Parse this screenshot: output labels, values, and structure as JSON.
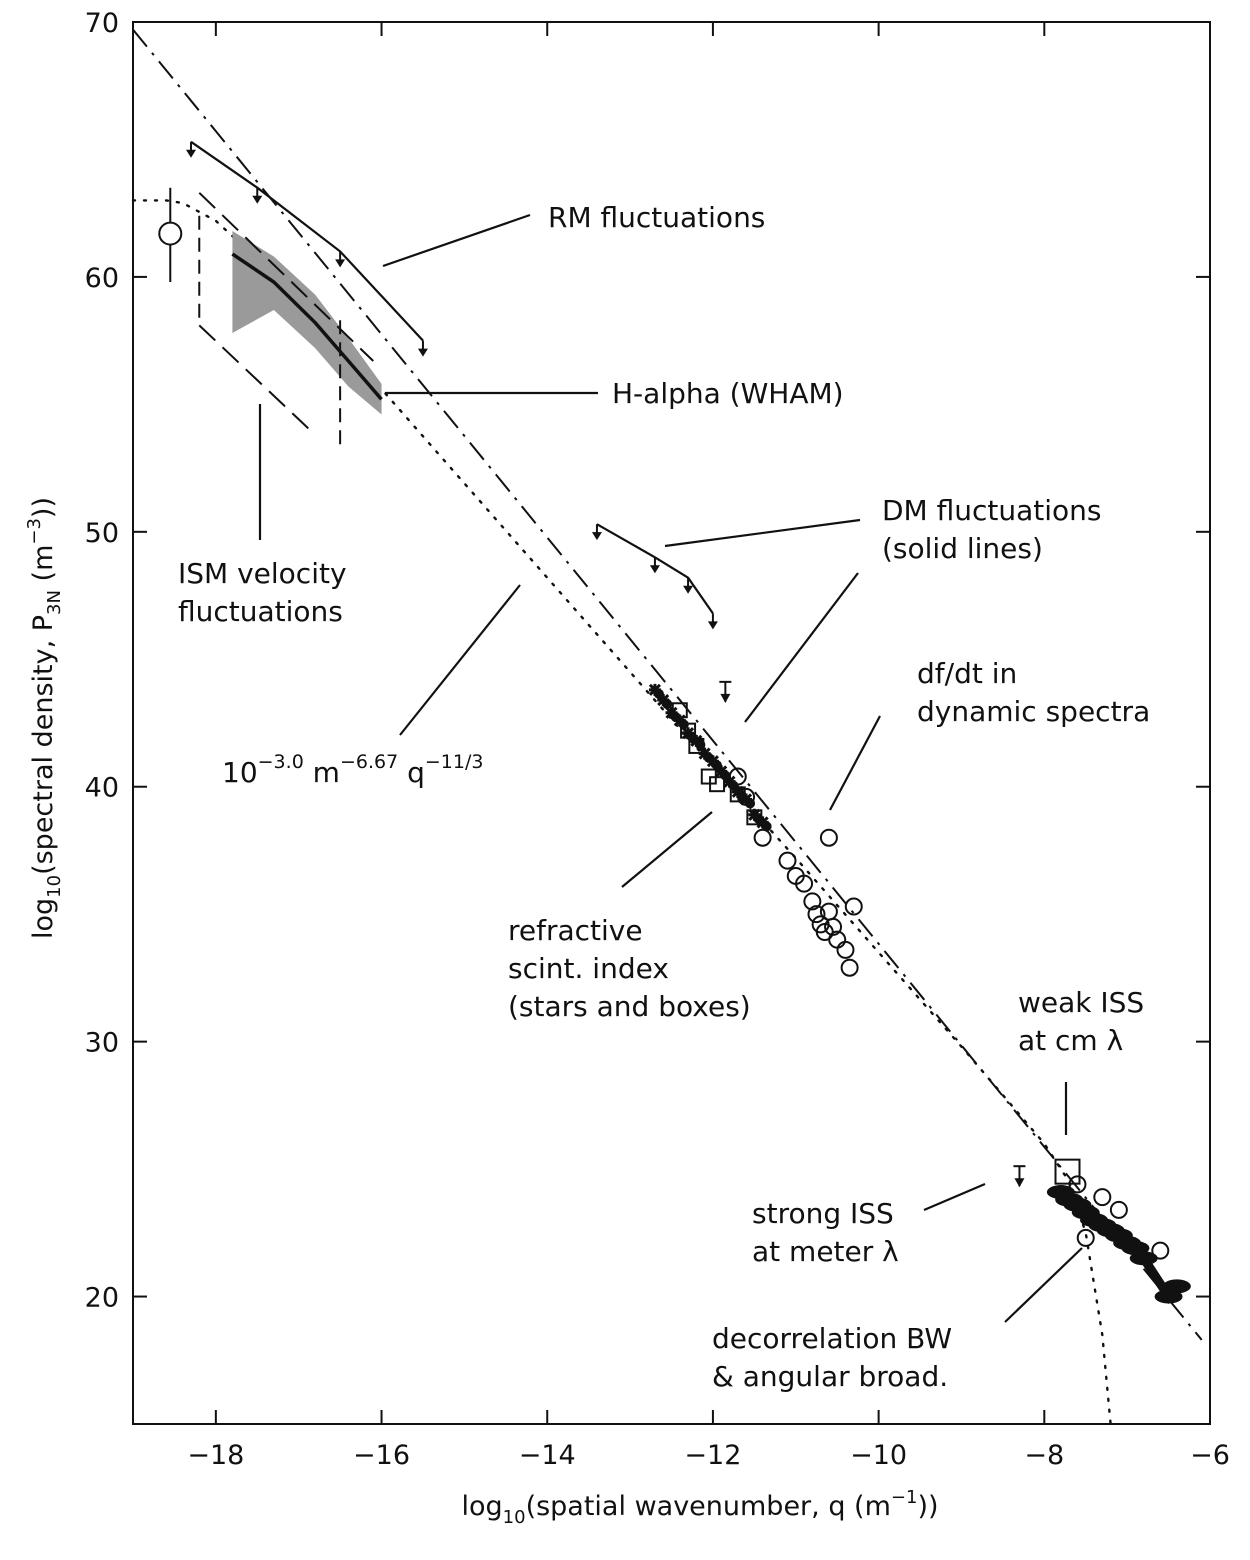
{
  "chart_data": {
    "type": "scatter",
    "xlabel": "log10(spatial wavenumber, q (m^-1))",
    "ylabel": "log10(spectral density, P3N (m^-3))",
    "xlabel_parts": {
      "main": "log",
      "sub": "10",
      "rest": "(spatial wavenumber, q (m",
      "sup": "−1",
      "end": "))"
    },
    "ylabel_parts": {
      "main": "log",
      "sub": "10",
      "rest": "(spectral density, P",
      "sub2": "3N",
      "mid": " (m",
      "sup": "−3",
      "end": "))"
    },
    "xlim": [
      -19,
      -6
    ],
    "ylim": [
      15,
      70
    ],
    "xticks": [
      -18,
      -16,
      -14,
      -12,
      -10,
      -8,
      -6
    ],
    "xtick_labels": [
      "−18",
      "−16",
      "−14",
      "−12",
      "−10",
      "−8",
      "−6"
    ],
    "yticks": [
      20,
      30,
      40,
      50,
      60,
      70
    ],
    "ytick_labels": [
      "20",
      "30",
      "40",
      "50",
      "60",
      "70"
    ],
    "fit_label": {
      "base": "10",
      "e1": "−3.0",
      "m": " m",
      "e2": "−6.67",
      "q": " q",
      "e3": "−11/3"
    },
    "annotations": [
      {
        "lines": [
          "RM fluctuations"
        ]
      },
      {
        "lines": [
          "H-alpha (WHAM)"
        ]
      },
      {
        "lines": [
          "ISM velocity",
          "fluctuations"
        ]
      },
      {
        "lines": [
          "DM fluctuations",
          "(solid lines)"
        ]
      },
      {
        "lines": [
          "df/dt in",
          "dynamic spectra"
        ]
      },
      {
        "lines": [
          "refractive",
          "scint. index",
          "(stars and boxes)"
        ]
      },
      {
        "lines": [
          "weak ISS",
          "at cm λ"
        ]
      },
      {
        "lines": [
          "strong ISS",
          "at meter λ"
        ]
      },
      {
        "lines": [
          "decorrelation BW",
          "& angular broad."
        ]
      }
    ],
    "series": [
      {
        "role": "reference line, slope -11/3",
        "style": "dash-dot",
        "x": [
          -19,
          -6.1
        ],
        "y": [
          69.7,
          18.3
        ]
      },
      {
        "role": "dotted model with inner/outer scale",
        "style": "dotted",
        "x": [
          -19,
          -18.6,
          -18.4,
          -18,
          -17,
          -16,
          -15,
          -14,
          -13,
          -12,
          -11,
          -10,
          -9,
          -8,
          -7.7,
          -7.5,
          -7.3,
          -7.2
        ],
        "y": [
          63,
          63,
          62.9,
          62.2,
          59.2,
          55.6,
          51.9,
          48.2,
          44.5,
          40.8,
          37.2,
          33.5,
          29.8,
          26,
          24.5,
          22.5,
          18.5,
          15
        ]
      },
      {
        "role": "RM fluctuations",
        "style": "solid",
        "x": [
          -18.3,
          -17.5,
          -16.5,
          -15.5
        ],
        "y": [
          65.3,
          63.5,
          61,
          57.5
        ]
      },
      {
        "role": "H-alpha (WHAM)",
        "style": "solid-band",
        "x": [
          -17.8,
          -17.3,
          -16.8,
          -16.4,
          -16
        ],
        "y": [
          60.9,
          59.8,
          58.2,
          56.7,
          55.2
        ],
        "y_upper": [
          61.8,
          60.8,
          59.3,
          57.6,
          55.8
        ],
        "y_lower": [
          57.8,
          58.7,
          57.2,
          55.7,
          54.6
        ]
      },
      {
        "role": "ISM velocity fluctuations (dashed)",
        "style": "dashed",
        "x": [
          -18.5,
          -18.5,
          -18.2,
          -17.8,
          -16.8
        ],
        "y": [
          63.5,
          61.2,
          63.5,
          58.1,
          53.8
        ]
      },
      {
        "role": "DM fluctuations",
        "style": "solid",
        "x": [
          -13.4,
          -12.7,
          -12.3,
          -12
        ],
        "y": [
          50.3,
          49,
          48.2,
          46.8
        ]
      },
      {
        "role": "refractive scint. index stars",
        "style": "markers",
        "x": [
          -12.7,
          -12.6,
          -12.5,
          -12.4,
          -12.3,
          -12.2,
          -12.1,
          -12.0,
          -11.9,
          -11.8,
          -11.7,
          -11.6,
          -11.5,
          -11.4
        ],
        "y": [
          43.8,
          43.4,
          42.9,
          42.6,
          42.1,
          41.8,
          41.3,
          41.0,
          40.6,
          40.2,
          39.8,
          39.5,
          38.9,
          38.6
        ]
      },
      {
        "role": "refractive scint. index boxes",
        "style": "markers",
        "x": [
          -12.4,
          -12.3,
          -12.2,
          -12.05,
          -11.95,
          -11.7,
          -11.5
        ],
        "y": [
          43.0,
          42.2,
          41.6,
          40.4,
          40.1,
          39.7,
          38.8
        ]
      },
      {
        "role": "df/dt in dynamic spectra (circles)",
        "style": "markers",
        "x": [
          -11.7,
          -11.6,
          -11.4,
          -11.1,
          -11.0,
          -10.9,
          -10.8,
          -10.75,
          -10.7,
          -10.65,
          -10.6,
          -10.55,
          -10.5,
          -10.4,
          -10.35,
          -10.3,
          -10.6
        ],
        "y": [
          40.4,
          39.6,
          38.0,
          37.1,
          36.5,
          36.2,
          35.5,
          35.0,
          34.6,
          34.3,
          35.1,
          34.5,
          34.0,
          33.6,
          32.9,
          35.3,
          38.0
        ]
      },
      {
        "role": "weak ISS at cm lambda",
        "style": "square",
        "x": [
          -7.72
        ],
        "y": [
          24.9
        ]
      },
      {
        "role": "strong ISS at meter lambda",
        "style": "markers",
        "x": [
          -7.8,
          -7.7,
          -7.6,
          -7.5,
          -7.4,
          -7.3,
          -7.2,
          -7.1,
          -7.0,
          -6.9,
          -6.8,
          -6.5,
          -6.4
        ],
        "y": [
          24.1,
          23.8,
          23.6,
          23.3,
          23.0,
          22.8,
          22.6,
          22.4,
          22.1,
          21.9,
          21.5,
          20.0,
          20.4
        ]
      },
      {
        "role": "decorrelation BW (small circles)",
        "style": "markers",
        "x": [
          -7.6,
          -7.3,
          -7.1,
          -6.6,
          -7.5
        ],
        "y": [
          24.4,
          23.9,
          23.4,
          21.8,
          22.3
        ]
      },
      {
        "role": "upper limits",
        "style": "arrows",
        "x": [
          -8.3,
          -11.85
        ],
        "y": [
          24.8,
          43.8
        ]
      },
      {
        "role": "open circle large-scale point",
        "style": "marker",
        "x": [
          -18.55
        ],
        "y": [
          61.7
        ],
        "y_err": [
          59.8,
          63.5
        ]
      }
    ]
  }
}
